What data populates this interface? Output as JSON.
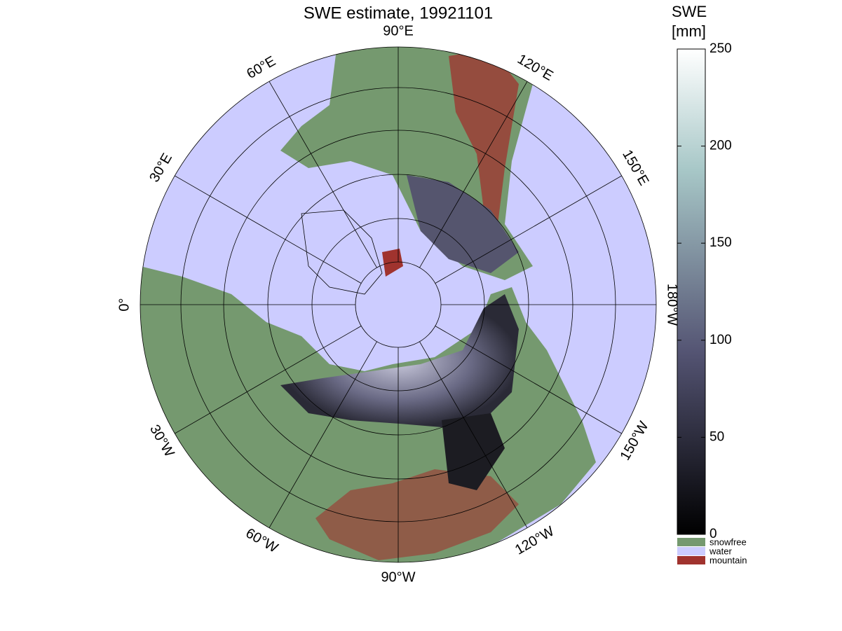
{
  "map": {
    "title": "SWE estimate, 19921101",
    "meridians": [
      {
        "value": -90,
        "label": "90°W"
      },
      {
        "value": -60,
        "label": "120°W"
      },
      {
        "value": -30,
        "label": "150°W"
      },
      {
        "value": 0,
        "label": "180°W"
      },
      {
        "value": 30,
        "label": "150°E"
      },
      {
        "value": 60,
        "label": "120°E"
      },
      {
        "value": 90,
        "label": "90°E"
      },
      {
        "value": 120,
        "label": "60°E"
      },
      {
        "value": 150,
        "label": "30°E"
      },
      {
        "value": 180,
        "label": "0°"
      },
      {
        "value": 210,
        "label": "30°W"
      },
      {
        "value": 240,
        "label": "60°W"
      }
    ],
    "colorbar": {
      "label": [
        "SWE",
        "[mm]"
      ],
      "ylim": [
        0,
        250
      ],
      "yticks": [
        0,
        50,
        100,
        150,
        200,
        250
      ]
    },
    "legend": [
      {
        "name": "snowfree",
        "color": "#75996f"
      },
      {
        "name": "water",
        "color": "#ccccff"
      },
      {
        "name": "mountain",
        "color": "#a0332e"
      }
    ]
  }
}
